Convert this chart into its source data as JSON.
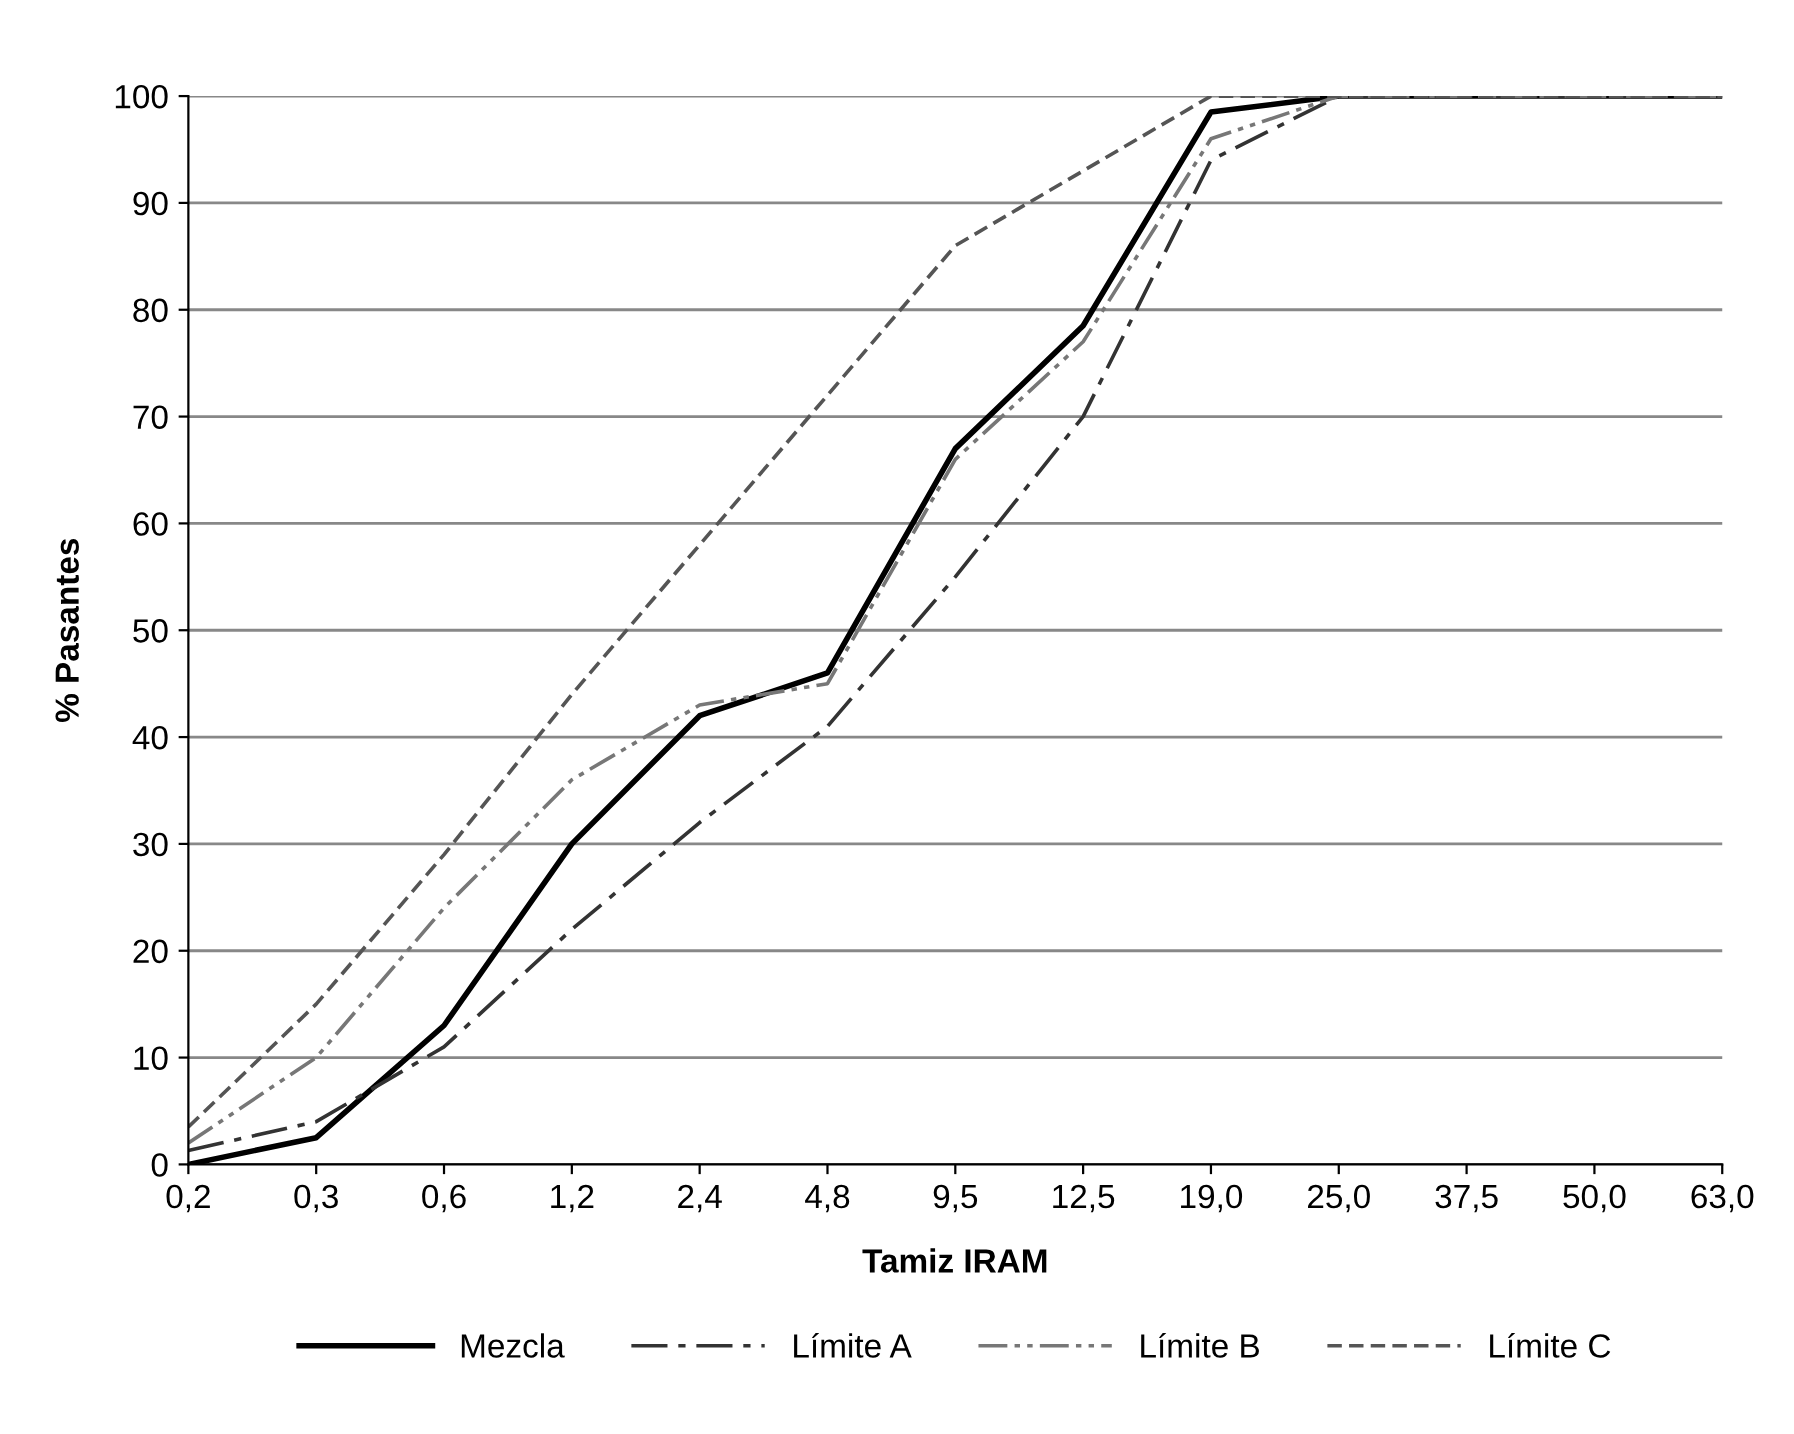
{
  "chart_data": {
    "type": "line",
    "xlabel": "Tamiz IRAM",
    "ylabel": "% Pasantes",
    "categories": [
      "0,2",
      "0,3",
      "0,6",
      "1,2",
      "2,4",
      "4,8",
      "9,5",
      "12,5",
      "19,0",
      "25,0",
      "37,5",
      "50,0",
      "63,0"
    ],
    "series": [
      {
        "name": "Mezcla",
        "color": "#000000",
        "line_style": "solid",
        "values": [
          0,
          2.5,
          13,
          30,
          42,
          46,
          67,
          78.5,
          98.5,
          100,
          100,
          100,
          100
        ]
      },
      {
        "name": "Límite A",
        "color": "#333333",
        "line_style": "dashdot",
        "values": [
          1.3,
          4,
          11,
          22,
          32,
          41,
          55,
          70,
          94,
          100,
          100,
          100,
          100
        ]
      },
      {
        "name": "Límite B",
        "color": "#777777",
        "line_style": "dashdotdot",
        "values": [
          2,
          10,
          24,
          36,
          43,
          45,
          66,
          77,
          96,
          100,
          100,
          100,
          100
        ]
      },
      {
        "name": "Límite C",
        "color": "#555555",
        "line_style": "dashed",
        "values": [
          3.5,
          15,
          29,
          44,
          58,
          72,
          86,
          93,
          100,
          100,
          100,
          100,
          100
        ]
      }
    ],
    "ylim": [
      0,
      100
    ],
    "yticks": [
      0,
      10,
      20,
      30,
      40,
      50,
      60,
      70,
      80,
      90,
      100
    ],
    "grid": "y",
    "legend": "bottom",
    "marker": "none"
  }
}
